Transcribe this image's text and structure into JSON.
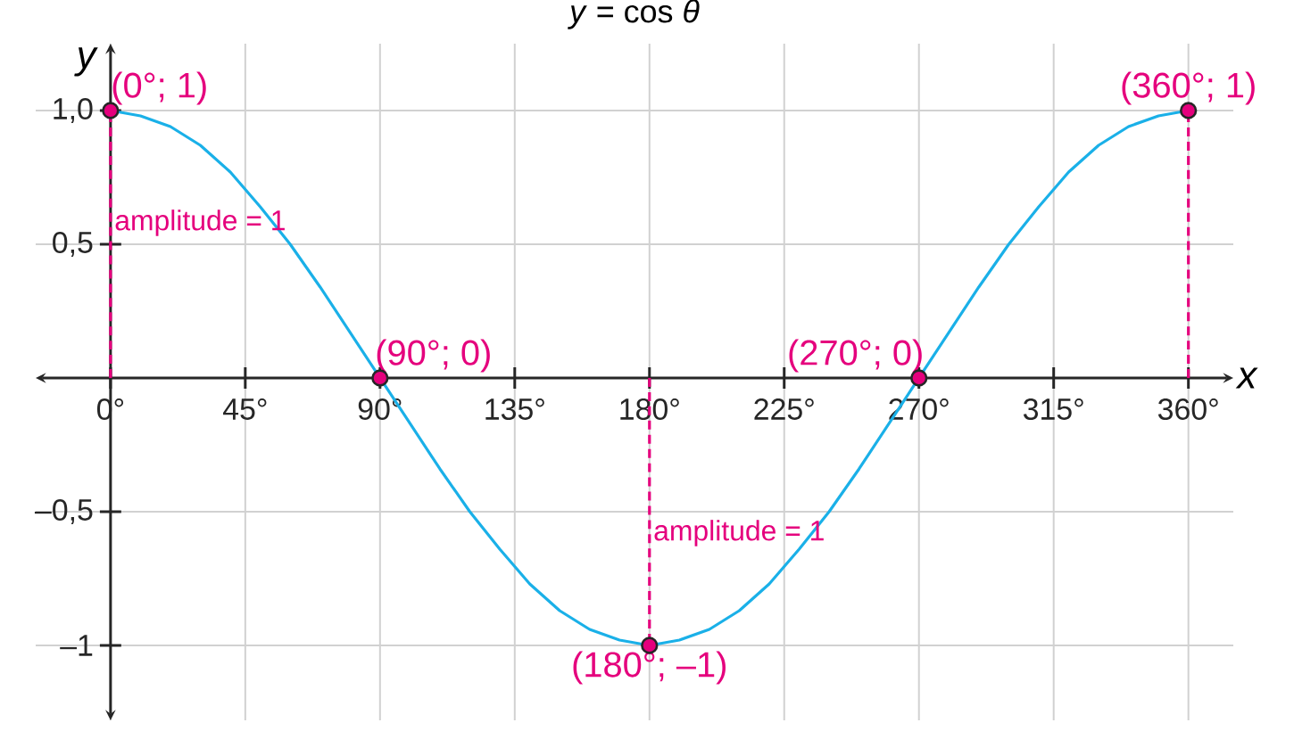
{
  "chart_data": {
    "type": "line",
    "title": "*y* = cos *θ*",
    "xlabel": "x",
    "ylabel": "y",
    "xlim": [
      -25,
      375
    ],
    "ylim": [
      -1.28,
      1.25
    ],
    "xticks": [
      {
        "value": 0,
        "label": "0°"
      },
      {
        "value": 45,
        "label": "45°"
      },
      {
        "value": 90,
        "label": "90°"
      },
      {
        "value": 135,
        "label": "135°"
      },
      {
        "value": 180,
        "label": "180°"
      },
      {
        "value": 225,
        "label": "225°"
      },
      {
        "value": 270,
        "label": "270°"
      },
      {
        "value": 315,
        "label": "315°"
      },
      {
        "value": 360,
        "label": "360°"
      }
    ],
    "yticks": [
      {
        "value": -1,
        "label": "–1"
      },
      {
        "value": -0.5,
        "label": "–0,5"
      },
      {
        "value": 0.5,
        "label": "0,5"
      },
      {
        "value": 1,
        "label": "1,0"
      }
    ],
    "grid": true,
    "series": [
      {
        "type": "line",
        "color": "#e5007d",
        "line_style": "dashed",
        "marker": "none",
        "x": [
          0,
          0
        ],
        "values": [
          0,
          1
        ]
      },
      {
        "type": "line",
        "color": "#e5007d",
        "line_style": "dashed",
        "marker": "none",
        "x": [
          180,
          180
        ],
        "values": [
          0,
          -1
        ]
      },
      {
        "type": "line",
        "color": "#e5007d",
        "line_style": "dashed",
        "marker": "none",
        "x": [
          360,
          360
        ],
        "values": [
          0,
          1
        ]
      },
      {
        "color": "#1ab0e8",
        "line_style": "solid",
        "marker": "none",
        "x": [
          0,
          10,
          20,
          30,
          40,
          50,
          60,
          70,
          80,
          90,
          100,
          110,
          120,
          130,
          140,
          150,
          160,
          170,
          180,
          190,
          200,
          210,
          220,
          230,
          240,
          250,
          260,
          270,
          280,
          290,
          300,
          310,
          320,
          330,
          340,
          350,
          360
        ],
        "values": [
          1,
          0.98,
          0.94,
          0.87,
          0.77,
          0.64,
          0.5,
          0.34,
          0.17,
          0,
          -0.17,
          -0.34,
          -0.5,
          -0.64,
          -0.77,
          -0.87,
          -0.94,
          -0.98,
          -1,
          -0.98,
          -0.94,
          -0.87,
          -0.77,
          -0.64,
          -0.5,
          -0.34,
          -0.17,
          0,
          0.17,
          0.34,
          0.5,
          0.64,
          0.77,
          0.87,
          0.94,
          0.98,
          1
        ]
      },
      {
        "type": "scatter",
        "color": "#e5007d",
        "marker": "circle",
        "x": [
          0,
          90,
          180,
          270,
          360
        ],
        "values": [
          1,
          0,
          -1,
          0,
          1
        ]
      }
    ],
    "annotations": [
      {
        "text": "(0°; 1)",
        "x": 0,
        "y": 1
      },
      {
        "text": "(90°; 0)",
        "x": 90,
        "y": 0
      },
      {
        "text": "(180°; –1)",
        "x": 180,
        "y": -1
      },
      {
        "text": "(270°; 0)",
        "x": 270,
        "y": 0
      },
      {
        "text": "(360°; 1)",
        "x": 360,
        "y": 1
      },
      {
        "text": "amplitude = 1",
        "x": 0,
        "y": 0.58
      },
      {
        "text": "amplitude = 1",
        "x": 180,
        "y": -0.58
      }
    ]
  }
}
